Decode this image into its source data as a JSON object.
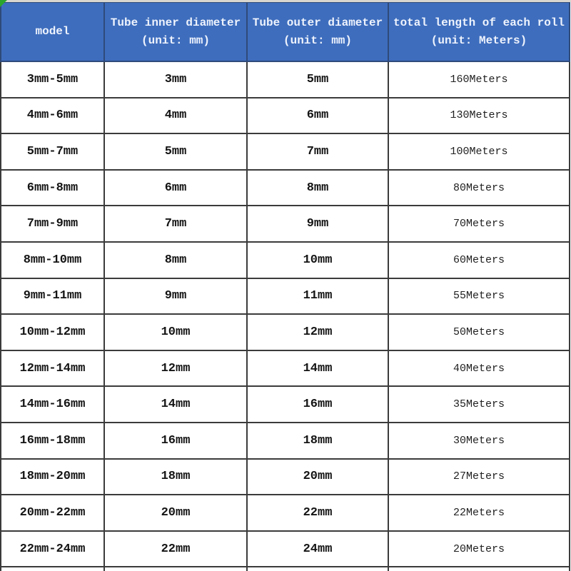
{
  "chart_data": {
    "type": "table",
    "title": "",
    "headers": [
      {
        "line1": "model",
        "line2": ""
      },
      {
        "line1": "Tube inner diameter",
        "line2": "(unit: mm)"
      },
      {
        "line1": "Tube outer diameter",
        "line2": "(unit: mm)"
      },
      {
        "line1": "total length of each roll",
        "line2": "(unit: Meters)"
      }
    ],
    "rows": [
      [
        "3mm-5mm",
        "3mm",
        "5mm",
        "160Meters"
      ],
      [
        "4mm-6mm",
        "4mm",
        "6mm",
        "130Meters"
      ],
      [
        "5mm-7mm",
        "5mm",
        "7mm",
        "100Meters"
      ],
      [
        "6mm-8mm",
        "6mm",
        "8mm",
        "80Meters"
      ],
      [
        "7mm-9mm",
        "7mm",
        "9mm",
        "70Meters"
      ],
      [
        "8mm-10mm",
        "8mm",
        "10mm",
        "60Meters"
      ],
      [
        "9mm-11mm",
        "9mm",
        "11mm",
        "55Meters"
      ],
      [
        "10mm-12mm",
        "10mm",
        "12mm",
        "50Meters"
      ],
      [
        "12mm-14mm",
        "12mm",
        "14mm",
        "40Meters"
      ],
      [
        "14mm-16mm",
        "14mm",
        "16mm",
        "35Meters"
      ],
      [
        "16mm-18mm",
        "16mm",
        "18mm",
        "30Meters"
      ],
      [
        "18mm-20mm",
        "18mm",
        "20mm",
        "27Meters"
      ],
      [
        "20mm-22mm",
        "20mm",
        "22mm",
        "22Meters"
      ],
      [
        "22mm-24mm",
        "22mm",
        "24mm",
        "20Meters"
      ]
    ],
    "colors": {
      "header_background": "#3e6dbd",
      "header_text": "#eef3fd",
      "grid_border": "#3b3b3b",
      "corner_flag_green": "#2ca52c"
    }
  }
}
